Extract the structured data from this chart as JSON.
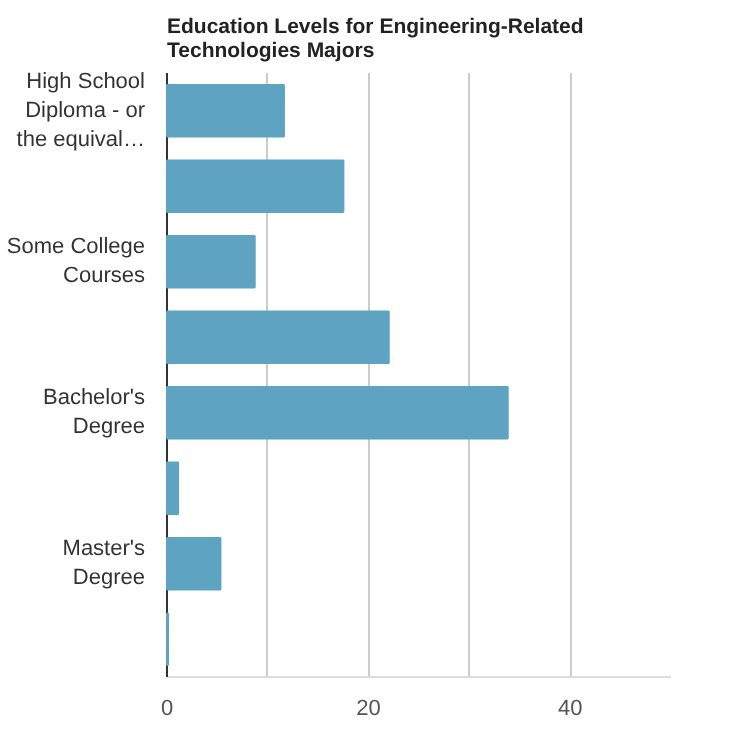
{
  "chart_data": {
    "type": "bar",
    "orientation": "horizontal",
    "title": "Education Levels for Engineering-Related Technologies Majors",
    "categories": [
      "High School Diploma - or the equival…",
      null,
      "Some College Courses",
      null,
      "Bachelor's Degree",
      null,
      "Master's Degree",
      null
    ],
    "values": [
      11.6,
      17.5,
      8.7,
      22.0,
      33.8,
      1.1,
      5.3,
      0.1
    ],
    "color": "#5ea3c2",
    "xlim": [
      0,
      50
    ],
    "xticks": [
      0,
      {
        "value": 10,
        "label": null
      },
      20,
      {
        "value": 30,
        "label": null
      },
      40
    ],
    "grid": "x"
  }
}
